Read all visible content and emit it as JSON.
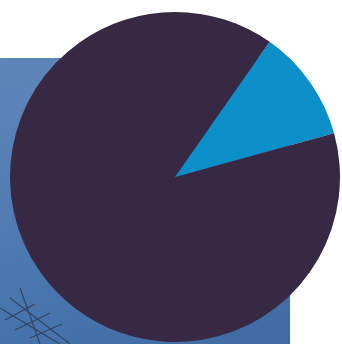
{
  "chart_data": {
    "type": "pie",
    "values": [
      11,
      89
    ],
    "colors": [
      "#0a8fc9",
      "#372944"
    ]
  }
}
